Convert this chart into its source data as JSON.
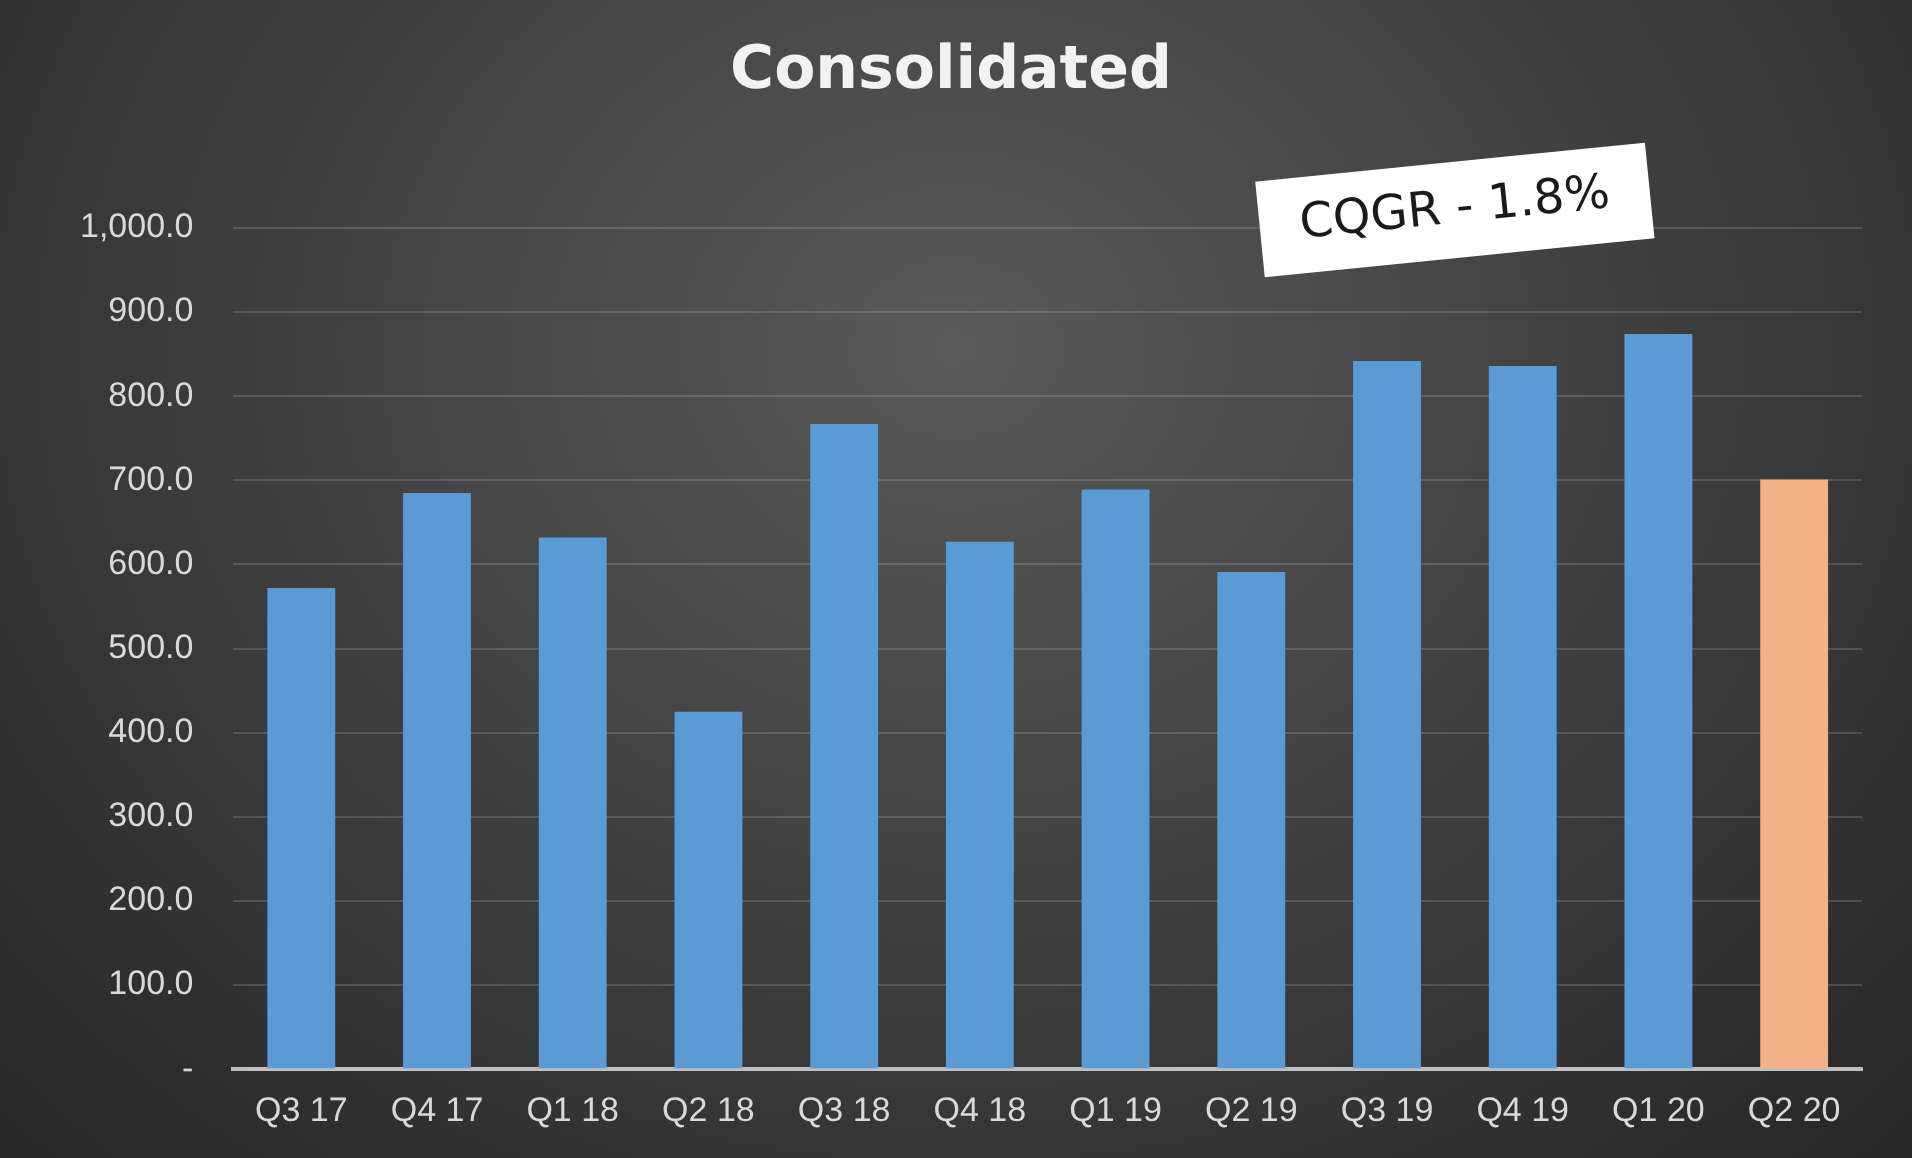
{
  "chart_data": {
    "type": "bar",
    "title": "Consolidated",
    "categories": [
      "Q3 17",
      "Q4 17",
      "Q1 18",
      "Q2 18",
      "Q3 18",
      "Q4 18",
      "Q1 19",
      "Q2 19",
      "Q3 19",
      "Q4 19",
      "Q1 20",
      "Q2 20"
    ],
    "values": [
      572,
      685,
      632,
      425,
      767,
      627,
      689,
      591,
      842,
      836,
      874,
      701
    ],
    "colors": [
      "#5b9bd5",
      "#5b9bd5",
      "#5b9bd5",
      "#5b9bd5",
      "#5b9bd5",
      "#5b9bd5",
      "#5b9bd5",
      "#5b9bd5",
      "#5b9bd5",
      "#5b9bd5",
      "#5b9bd5",
      "#f4b183"
    ],
    "ylim": [
      0,
      1000
    ],
    "yticks": [
      {
        "value": 0,
        "label": "-"
      },
      {
        "value": 100,
        "label": "100.0"
      },
      {
        "value": 200,
        "label": "200.0"
      },
      {
        "value": 300,
        "label": "300.0"
      },
      {
        "value": 400,
        "label": "400.0"
      },
      {
        "value": 500,
        "label": "500.0"
      },
      {
        "value": 600,
        "label": "600.0"
      },
      {
        "value": 700,
        "label": "700.0"
      },
      {
        "value": 800,
        "label": "800.0"
      },
      {
        "value": 900,
        "label": "900.0"
      },
      {
        "value": 1000,
        "label": "1,000.0"
      }
    ],
    "grid": "y",
    "legend": false,
    "annotations": [
      "CQGR - 1.8%"
    ]
  }
}
